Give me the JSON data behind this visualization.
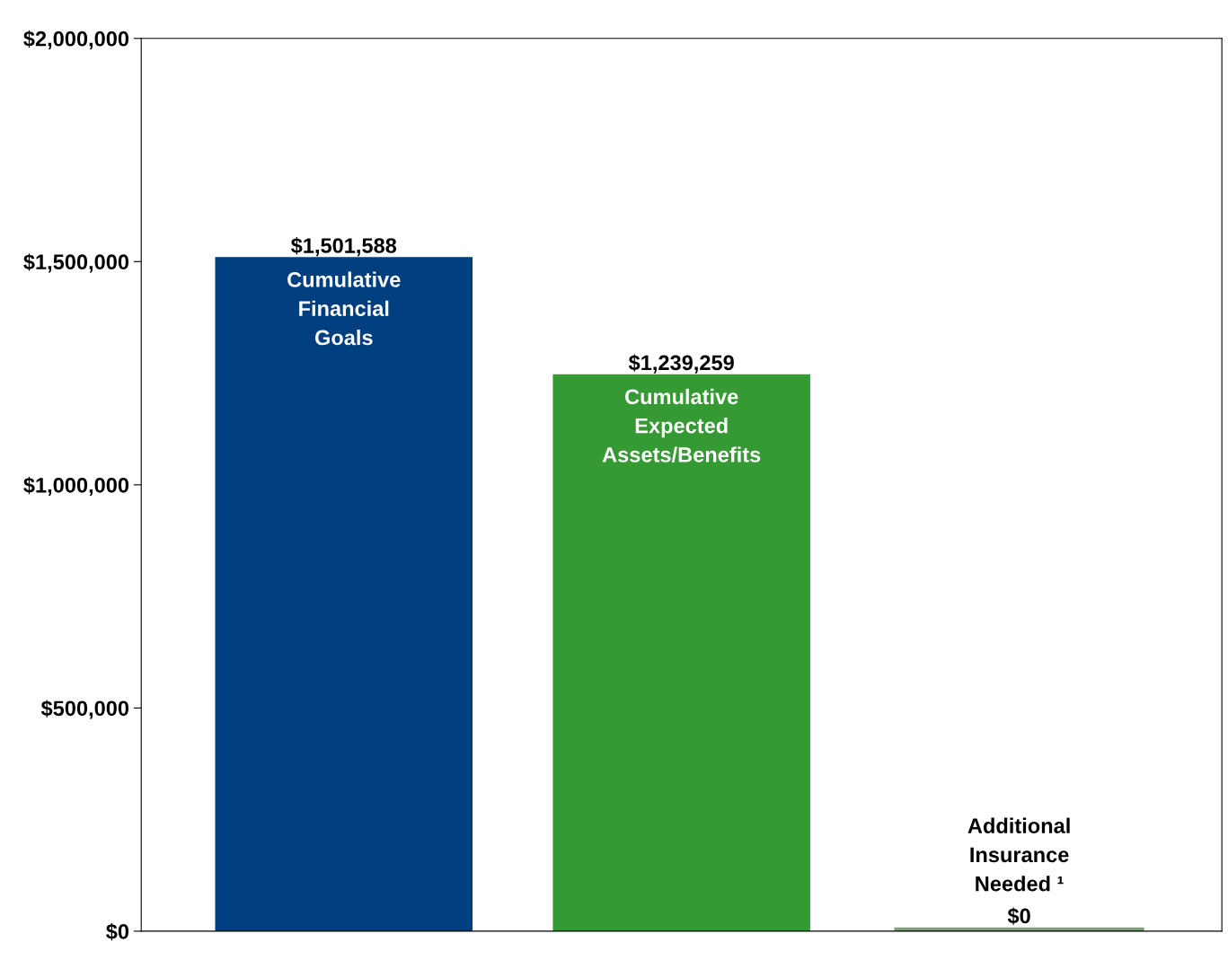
{
  "chart_data": {
    "type": "bar",
    "categories": [
      "Cumulative\nFinancial\nGoals",
      "Cumulative\nExpected\nAssets/Benefits",
      "Additional\nInsurance\nNeeded ¹"
    ],
    "values": [
      1501588,
      1239259,
      0
    ],
    "colors": [
      "#003f7f",
      "#359a33",
      "#7f9f7f"
    ],
    "value_labels": [
      "$1,501,588",
      "$1,239,259",
      "$0"
    ],
    "ylim": [
      0,
      2000000
    ],
    "yticks": [
      {
        "value": 0,
        "label": "$0"
      },
      {
        "value": 500000,
        "label": "$500,000"
      },
      {
        "value": 1000000,
        "label": "$1,000,000"
      },
      {
        "value": 1500000,
        "label": "$1,500,000"
      },
      {
        "value": 2000000,
        "label": "$2,000,000"
      }
    ],
    "grid": false,
    "legend": false
  }
}
